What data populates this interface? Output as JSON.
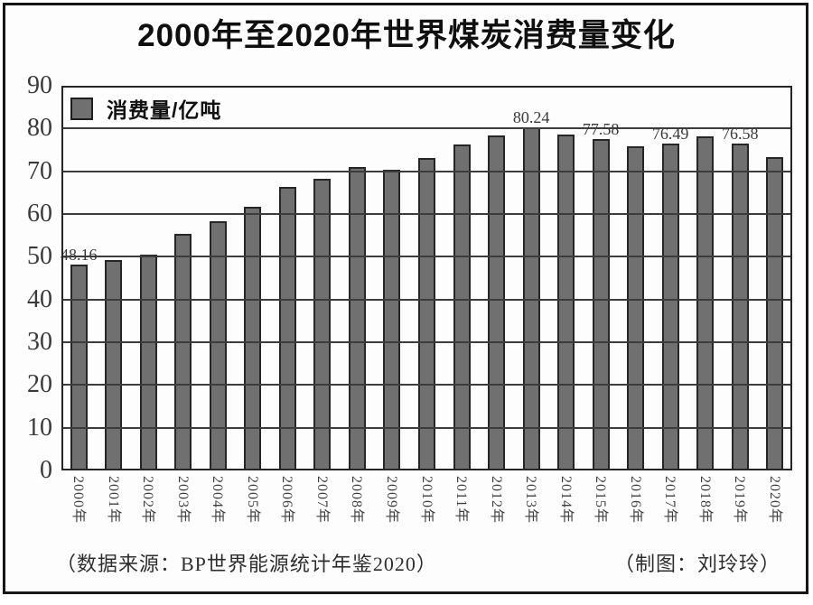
{
  "header": {
    "title": "2000年至2020年世界煤炭消费量变化"
  },
  "legend": {
    "label": "消费量/亿吨",
    "swatch_color": "#707070"
  },
  "footer": {
    "source_note": "（数据来源：BP世界能源统计年鉴2020）",
    "credit_note": "（制图：刘玲玲）"
  },
  "chart_data": {
    "type": "bar",
    "title": "2000年至2020年世界煤炭消费量变化",
    "ylabel": "消费量/亿吨",
    "unit": "亿吨",
    "categories": [
      "2000年",
      "2001年",
      "2002年",
      "2003年",
      "2004年",
      "2005年",
      "2006年",
      "2007年",
      "2008年",
      "2009年",
      "2010年",
      "2011年",
      "2012年",
      "2013年",
      "2014年",
      "2015年",
      "2016年",
      "2017年",
      "2018年",
      "2019年",
      "2020年"
    ],
    "values": [
      48.16,
      49.3,
      50.4,
      55.4,
      58.4,
      61.6,
      66.3,
      68.2,
      71.0,
      70.4,
      73.2,
      76.3,
      78.3,
      80.24,
      78.5,
      77.58,
      75.9,
      76.49,
      78.1,
      76.58,
      73.4
    ],
    "bar_value_labels": [
      "48.16",
      null,
      null,
      null,
      null,
      null,
      null,
      null,
      null,
      null,
      null,
      null,
      null,
      "80.24",
      null,
      "77.58",
      null,
      "76.49",
      null,
      "76.58",
      null
    ],
    "ylim": [
      0,
      90
    ],
    "ytick_step": 10,
    "yticks": [
      0,
      10,
      20,
      30,
      40,
      50,
      60,
      70,
      80,
      90
    ],
    "grid": "horizontal",
    "gridlines_over_bars": true,
    "legend_position": "top-left-inside",
    "colors": {
      "bar_fill": "#707070",
      "bar_border": "#262626",
      "gridline": "#3c3c3c",
      "axis_text": "#3a3a3a"
    }
  }
}
